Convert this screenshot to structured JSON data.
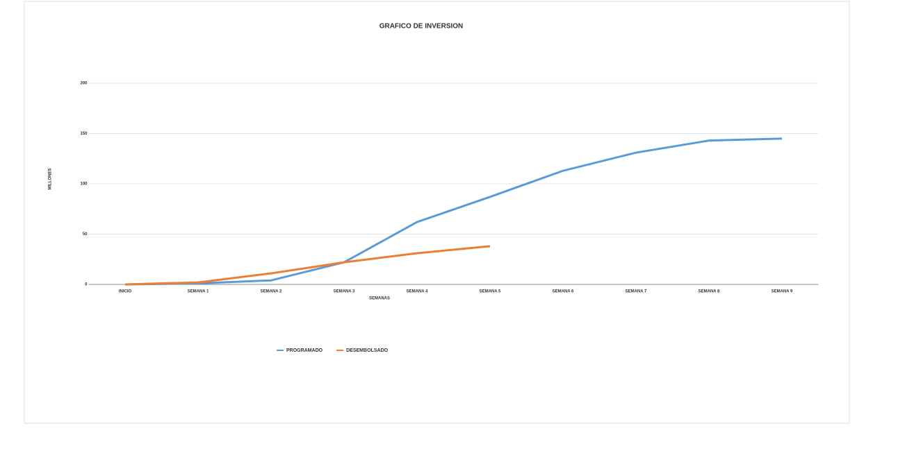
{
  "chart_data": {
    "type": "line",
    "title": "GRAFICO DE INVERSION",
    "ylabel": "MILLONES",
    "xlabel": "SEMANAS",
    "categories": [
      "INICIO",
      "SEMANA 1",
      "SEMANA 2",
      "SEMANA 3",
      "SEMANA 4",
      "SEMANA 5",
      "SEMANA 6",
      "SEMANA 7",
      "SEMANA 8",
      "SEMANA 9"
    ],
    "series": [
      {
        "name": "PROGRAMADO",
        "color": "#5b9bd5",
        "values": [
          0,
          1,
          4,
          22,
          62,
          87,
          113,
          131,
          143,
          145
        ]
      },
      {
        "name": "DESEMBOLSADO",
        "color": "#ed7d31",
        "values": [
          0,
          2,
          11,
          22,
          31,
          38,
          null,
          null,
          null,
          null
        ]
      }
    ],
    "ylim": [
      0,
      200
    ],
    "yticks": [
      0,
      50,
      100,
      150,
      200
    ],
    "grid": true,
    "legend": "bottom"
  }
}
